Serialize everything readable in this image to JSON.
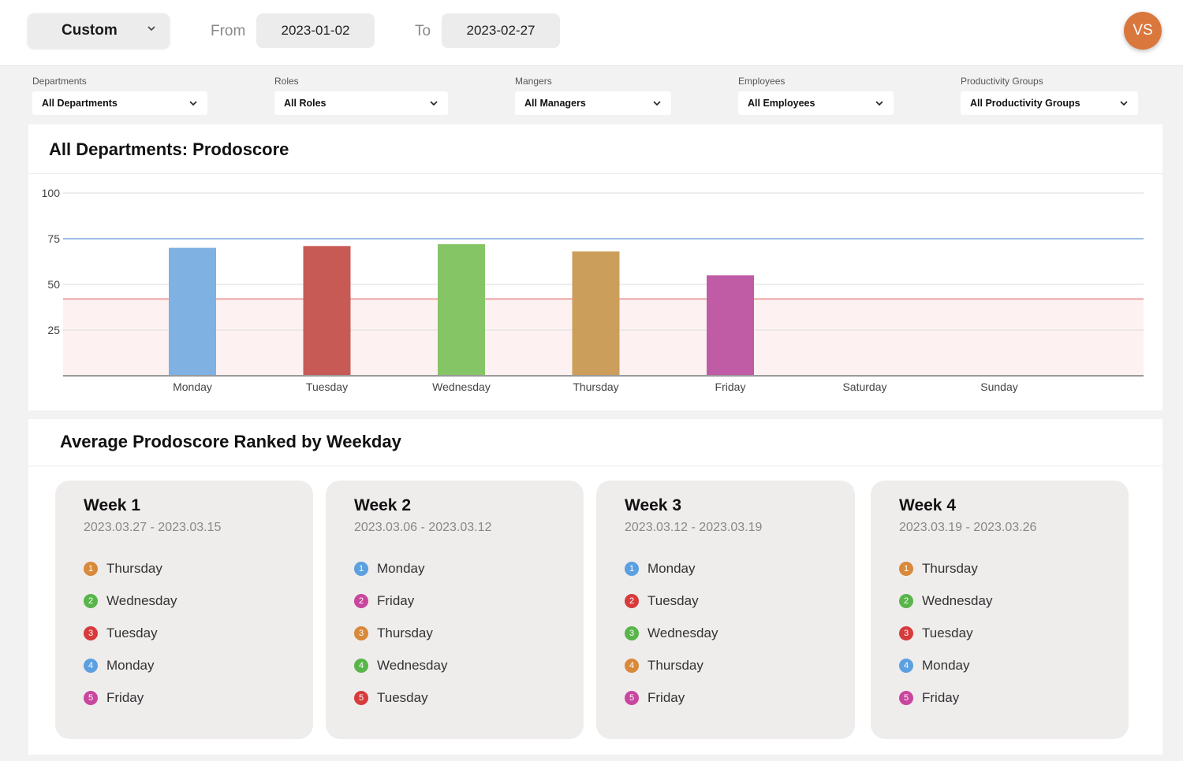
{
  "header": {
    "range_select": "Custom",
    "from_label": "From",
    "from_date": "2023-01-02",
    "to_label": "To",
    "to_date": "2023-02-27",
    "avatar_initials": "VS"
  },
  "filters": [
    {
      "label": "Departments",
      "value": "All Departments"
    },
    {
      "label": "Roles",
      "value": "All Roles"
    },
    {
      "label": "Mangers",
      "value": "All Managers"
    },
    {
      "label": "Employees",
      "value": "All Employees"
    },
    {
      "label": "Productivity Groups",
      "value": "All Productivity Groups"
    }
  ],
  "chart_panel": {
    "title": "All Departments: Prodoscore"
  },
  "chart_data": {
    "type": "bar",
    "categories": [
      "Monday",
      "Tuesday",
      "Wednesday",
      "Thursday",
      "Friday",
      "Saturday",
      "Sunday"
    ],
    "values": [
      70,
      71,
      72,
      68,
      55,
      null,
      null
    ],
    "bar_colors": [
      "#7fb1e3",
      "#c85a56",
      "#86c566",
      "#cc9e5c",
      "#c05ba6",
      null,
      null
    ],
    "yticks": [
      25,
      50,
      75,
      100
    ],
    "ylim": [
      0,
      100
    ],
    "reference_lines": [
      {
        "value": 75,
        "color": "#9bbde6"
      },
      {
        "value": 42,
        "color": "#eda3a3",
        "band_fill": "#fdf1f1"
      }
    ],
    "grid": true
  },
  "ranking_panel": {
    "title": "Average Prodoscore Ranked by Weekday",
    "rank_colors": {
      "Monday": "#5ba0e0",
      "Tuesday": "#d73b3b",
      "Wednesday": "#58b54a",
      "Thursday": "#d9893a",
      "Friday": "#c8469e"
    },
    "weeks": [
      {
        "title": "Week 1",
        "range": "2023.03.27 - 2023.03.15",
        "days": [
          "Thursday",
          "Wednesday",
          "Tuesday",
          "Monday",
          "Friday"
        ]
      },
      {
        "title": "Week 2",
        "range": "2023.03.06 - 2023.03.12",
        "days": [
          "Monday",
          "Friday",
          "Thursday",
          "Wednesday",
          "Tuesday"
        ]
      },
      {
        "title": "Week 3",
        "range": "2023.03.12 - 2023.03.19",
        "days": [
          "Monday",
          "Tuesday",
          "Wednesday",
          "Thursday",
          "Friday"
        ]
      },
      {
        "title": "Week 4",
        "range": "2023.03.19 - 2023.03.26",
        "days": [
          "Thursday",
          "Wednesday",
          "Tuesday",
          "Monday",
          "Friday"
        ]
      }
    ]
  }
}
